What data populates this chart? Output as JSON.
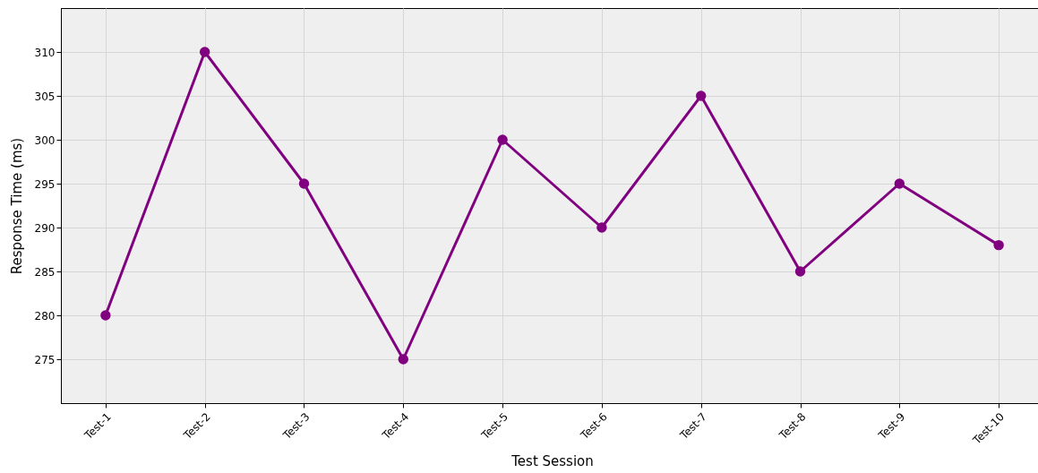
{
  "chart_data": {
    "type": "line",
    "xlabel": "Test Session",
    "ylabel": "Response Time (ms)",
    "categories": [
      "Test-1",
      "Test-2",
      "Test-3",
      "Test-4",
      "Test-5",
      "Test-6",
      "Test-7",
      "Test-8",
      "Test-9",
      "Test-10"
    ],
    "series": [
      {
        "color": "#800080",
        "values": [
          280,
          310,
          295,
          275,
          300,
          290,
          305,
          285,
          295,
          288
        ]
      }
    ],
    "ylim": [
      270,
      315
    ],
    "yticks": [
      275,
      280,
      285,
      290,
      295,
      300,
      305,
      310
    ],
    "grid": true,
    "marker": "circle",
    "line_style": "solid"
  }
}
